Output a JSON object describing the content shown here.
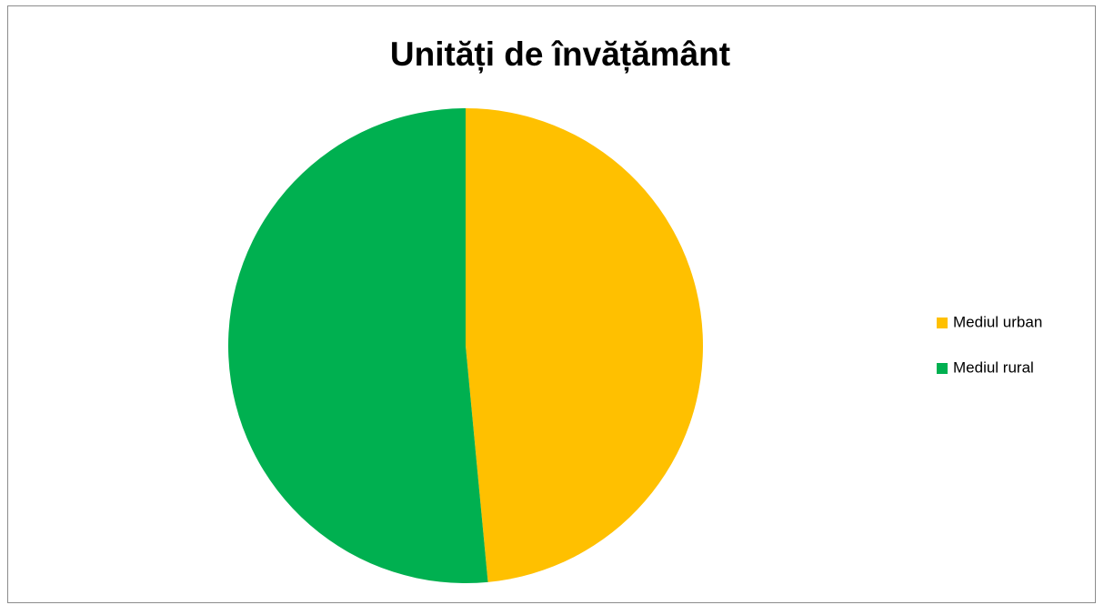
{
  "chart_data": {
    "type": "pie",
    "title": "Unități de învățământ",
    "categories": [
      "Mediul urban",
      "Mediul rural"
    ],
    "values": [
      48.5,
      51.5
    ],
    "colors": [
      "#ffc000",
      "#00b050"
    ],
    "legend": "right"
  }
}
